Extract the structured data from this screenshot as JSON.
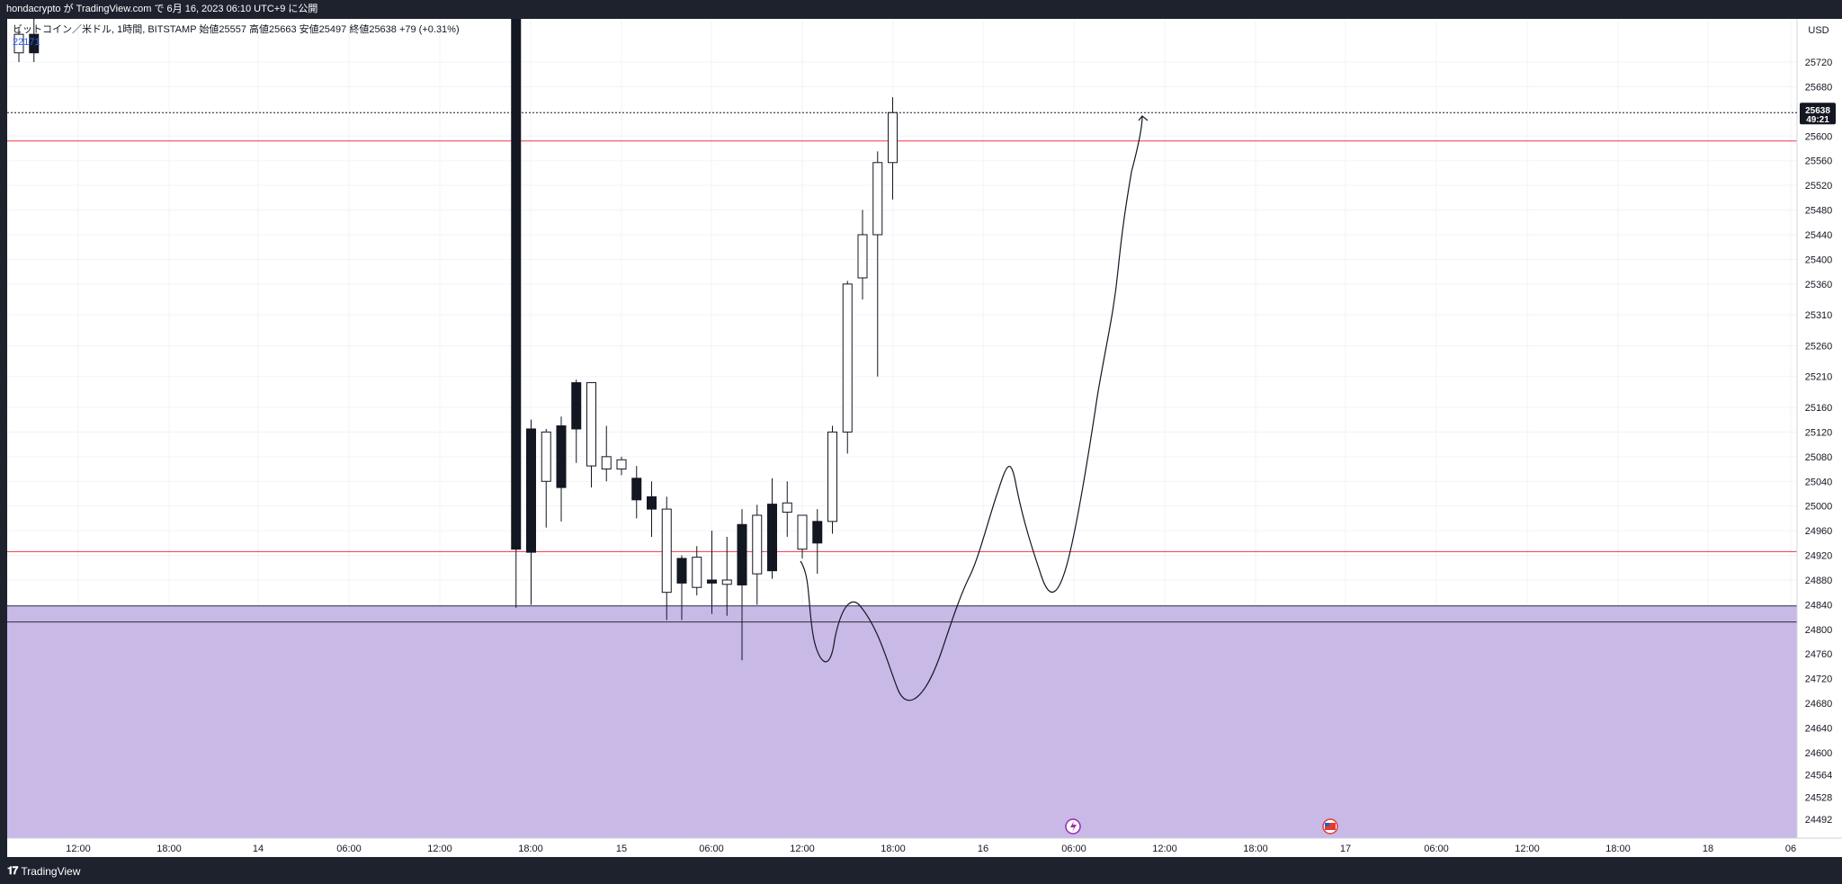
{
  "header": {
    "published_text": "hondacrypto が TradingView.com で 6月 16, 2023 06:10 UTC+9 に公開"
  },
  "legend": {
    "symbol_line": "ビットコイン／米ドル, 1時間, BITSTAMP  始値25557  高値25663  安値25497  終値25638  +79 (+0.31%)",
    "volume": "22171"
  },
  "footer": {
    "brand": "TradingView"
  },
  "chart_data": {
    "type": "candlestick",
    "symbol": "ビットコイン／米ドル",
    "interval": "1時間",
    "exchange": "BITSTAMP",
    "currency": "USD",
    "last_price": "25638",
    "countdown": "49:21",
    "y_ticks": [
      25720,
      25680,
      25600,
      25560,
      25520,
      25480,
      25440,
      25400,
      25360,
      25310,
      25260,
      25210,
      25160,
      25120,
      25080,
      25040,
      25000,
      24960,
      24920,
      24880,
      24840,
      24800,
      24760,
      24720,
      24680,
      24640,
      24600,
      24564,
      24528,
      24492
    ],
    "x_ticks": [
      "12:00",
      "18:00",
      "14",
      "06:00",
      "12:00",
      "18:00",
      "15",
      "06:00",
      "12:00",
      "18:00",
      "16",
      "06:00",
      "12:00",
      "18:00",
      "17",
      "06:00",
      "12:00",
      "18:00",
      "18",
      "06"
    ],
    "horizontal_lines": [
      {
        "price": 25592,
        "color": "#f23645"
      },
      {
        "price": 24926,
        "color": "#f23645"
      }
    ],
    "zone": {
      "top": 24838,
      "bottom": 24812,
      "fill": "#c8b9e7"
    },
    "candles": [
      {
        "time": "06-13 20:00",
        "open": 25735,
        "high": 25775,
        "low": 25720,
        "close": 25765
      },
      {
        "time": "06-13 21:00",
        "open": 25765,
        "high": 25790,
        "low": 25720,
        "close": 25735
      },
      {
        "time": "06-15 05:00",
        "open": 25880,
        "high": 25900,
        "low": 24835,
        "close": 24930
      },
      {
        "time": "06-15 06:00",
        "open": 25125,
        "high": 25140,
        "low": 24840,
        "close": 24925
      },
      {
        "time": "06-15 07:00",
        "open": 25040,
        "high": 25125,
        "low": 24965,
        "close": 25120
      },
      {
        "time": "06-15 08:00",
        "open": 25130,
        "high": 25145,
        "low": 24975,
        "close": 25030
      },
      {
        "time": "06-15 09:00",
        "open": 25200,
        "high": 25205,
        "low": 25070,
        "close": 25125
      },
      {
        "time": "06-15 10:00",
        "open": 25065,
        "high": 25200,
        "low": 25030,
        "close": 25200
      },
      {
        "time": "06-15 11:00",
        "open": 25060,
        "high": 25130,
        "low": 25040,
        "close": 25080
      },
      {
        "time": "06-15 12:00",
        "open": 25060,
        "high": 25080,
        "low": 25050,
        "close": 25075
      },
      {
        "time": "06-15 13:00",
        "open": 25045,
        "high": 25065,
        "low": 24980,
        "close": 25010
      },
      {
        "time": "06-15 14:00",
        "open": 25015,
        "high": 25040,
        "low": 24950,
        "close": 24995
      },
      {
        "time": "06-15 15:00",
        "open": 24860,
        "high": 25015,
        "low": 24815,
        "close": 24995
      },
      {
        "time": "06-15 16:00",
        "open": 24915,
        "high": 24920,
        "low": 24815,
        "close": 24875
      },
      {
        "time": "06-15 17:00",
        "open": 24868,
        "high": 24935,
        "low": 24855,
        "close": 24917
      },
      {
        "time": "06-15 18:00",
        "open": 24880,
        "high": 24960,
        "low": 24825,
        "close": 24875
      },
      {
        "time": "06-15 19:00",
        "open": 24873,
        "high": 24950,
        "low": 24822,
        "close": 24880
      },
      {
        "time": "06-15 20:00",
        "open": 24970,
        "high": 24995,
        "low": 24750,
        "close": 24872
      },
      {
        "time": "06-15 21:00",
        "open": 24890,
        "high": 25002,
        "low": 24840,
        "close": 24985
      },
      {
        "time": "06-15 22:00",
        "open": 25003,
        "high": 25045,
        "low": 24882,
        "close": 24895
      },
      {
        "time": "06-15 23:00",
        "open": 24990,
        "high": 25040,
        "low": 24950,
        "close": 25005
      },
      {
        "time": "06-16 00:00",
        "open": 24930,
        "high": 24975,
        "low": 24915,
        "close": 24985
      },
      {
        "time": "06-16 01:00",
        "open": 24975,
        "high": 24995,
        "low": 24890,
        "close": 24940
      },
      {
        "time": "06-16 02:00",
        "open": 24975,
        "high": 25130,
        "low": 24955,
        "close": 25120
      },
      {
        "time": "06-16 03:00",
        "open": 25120,
        "high": 25365,
        "low": 25085,
        "close": 25360
      },
      {
        "time": "06-16 04:00",
        "open": 25370,
        "high": 25480,
        "low": 25335,
        "close": 25440
      },
      {
        "time": "06-16 05:00",
        "open": 25440,
        "high": 25575,
        "low": 25210,
        "close": 25557
      },
      {
        "time": "06-16 06:00",
        "open": 25557,
        "high": 25663,
        "low": 25497,
        "close": 25638
      }
    ]
  }
}
